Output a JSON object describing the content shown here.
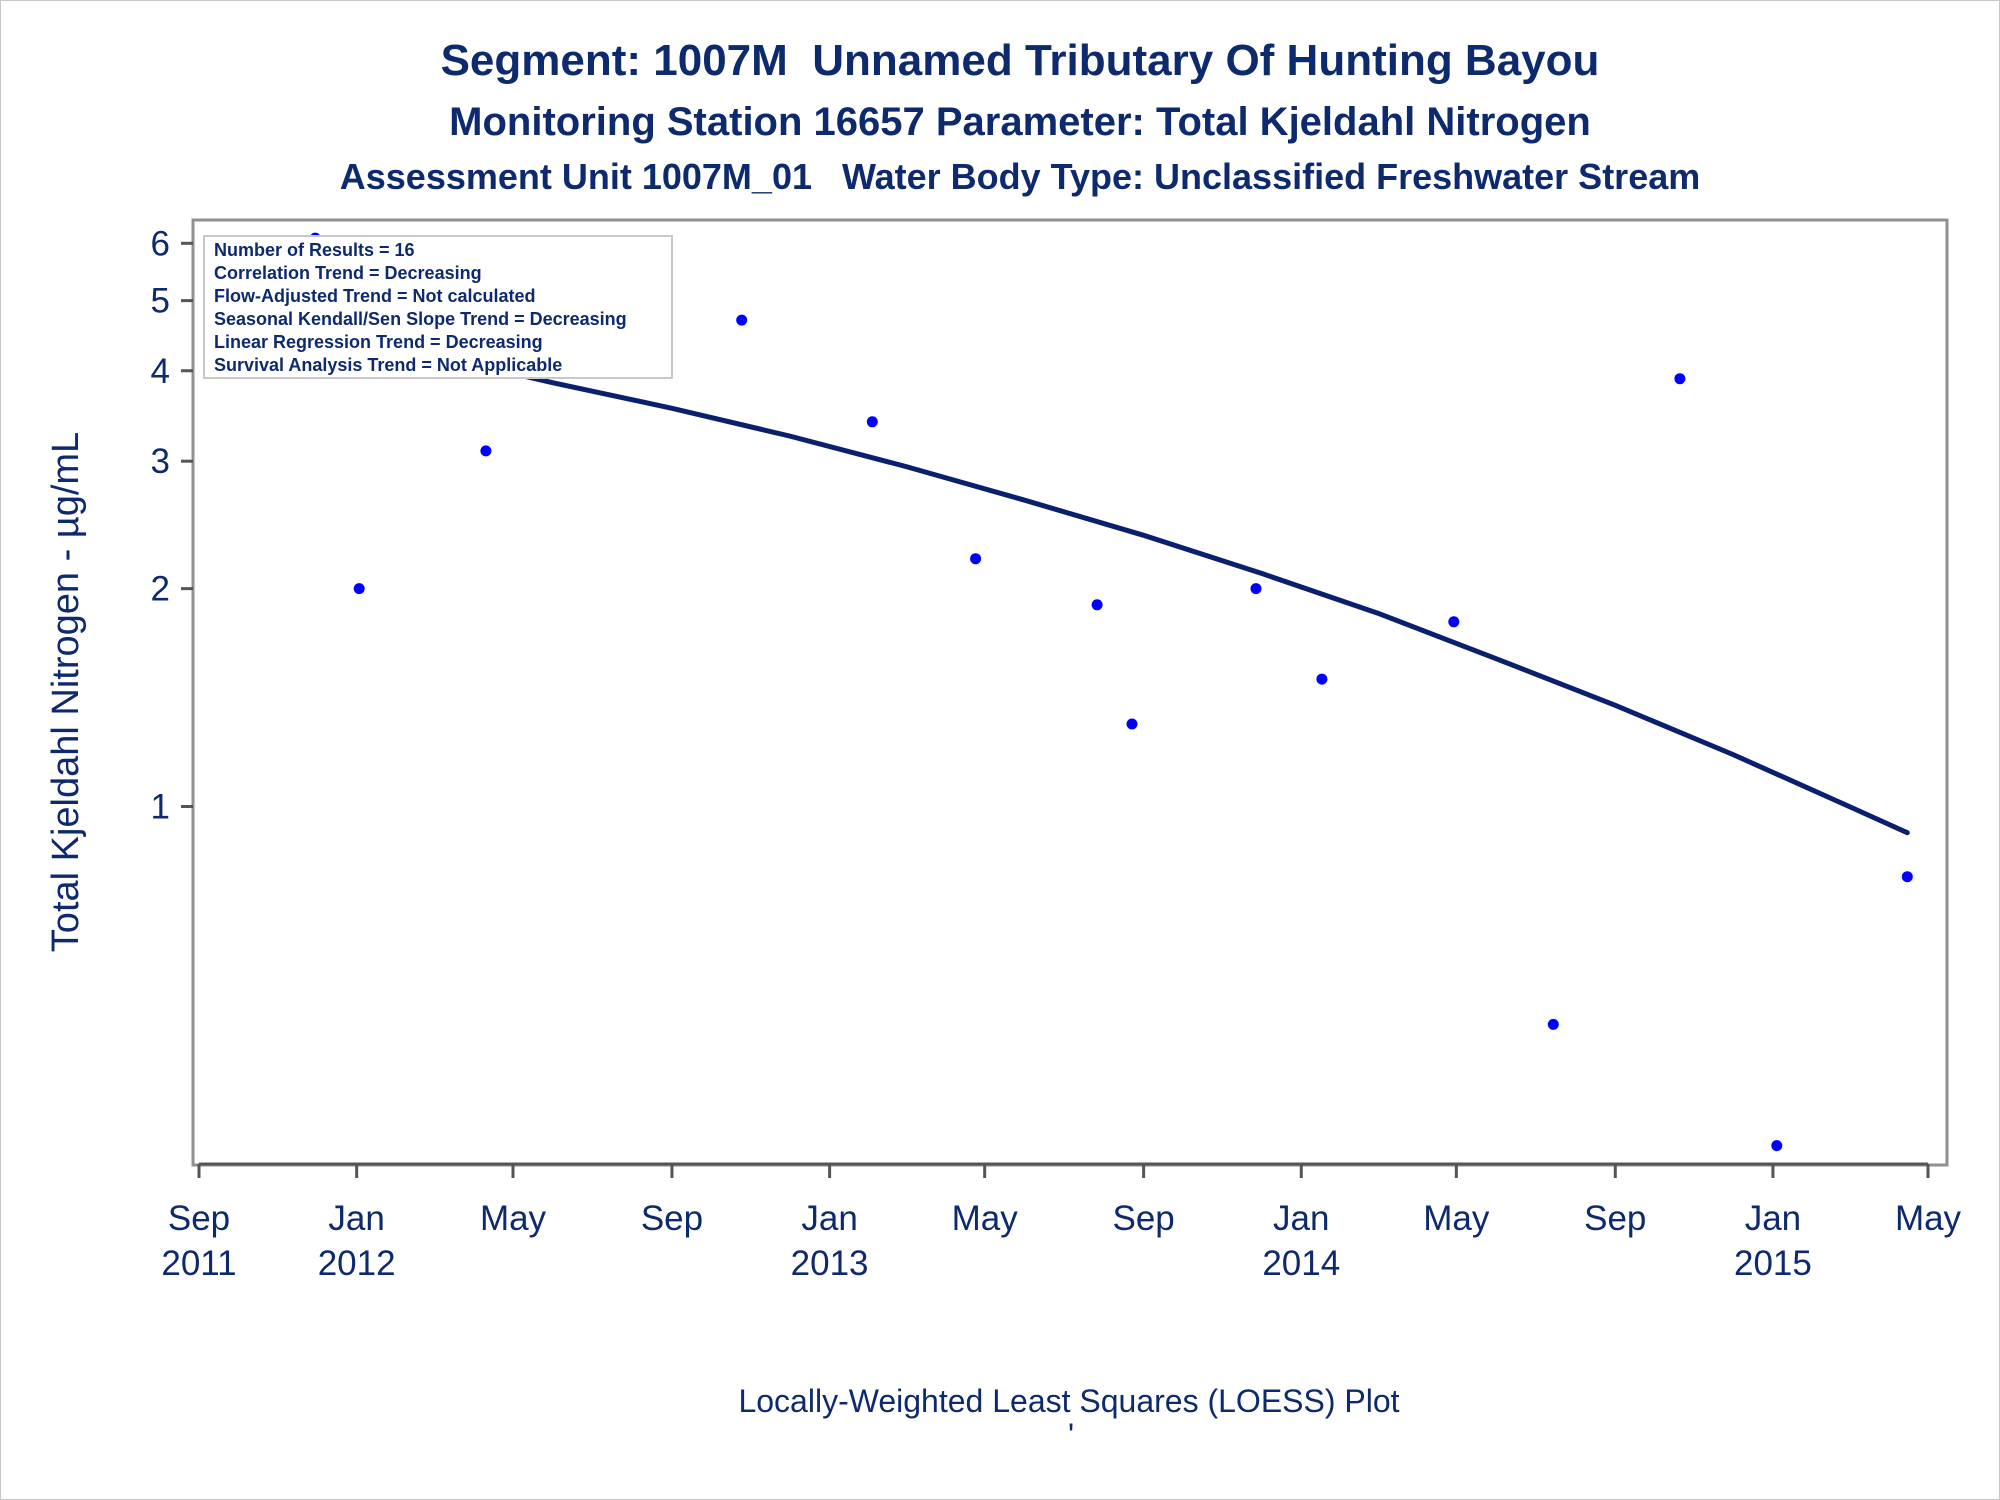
{
  "titles": {
    "line1": "Segment: 1007M  Unnamed Tributary Of Hunting Bayou",
    "line2": "Monitoring Station 16657 Parameter: Total Kjeldahl Nitrogen",
    "line3": "Assessment Unit 1007M_01   Water Body Type: Unclassified Freshwater Stream"
  },
  "stats_box": [
    "Number of Results = 16",
    "Correlation Trend = Decreasing",
    "Flow-Adjusted Trend = Not calculated",
    "Seasonal Kendall/Sen Slope Trend = Decreasing",
    "Linear Regression Trend = Decreasing",
    "Survival Analysis Trend = Not Applicable"
  ],
  "footnote": "Locally-Weighted Least Squares (LOESS) Plot",
  "footnote_mark": "'",
  "colors": {
    "text": "#0e2a6e",
    "points": "#0000ff",
    "curve": "#0a1f6e",
    "frame": "#909090"
  },
  "chart_data": {
    "type": "scatter",
    "ylabel": "Total Kjeldahl Nitrogen -  µg/mL",
    "yscale": "log",
    "ylim": [
      0.33,
      6.2
    ],
    "xlim": [
      "2011-09-01",
      "2015-05-01"
    ],
    "x_ticks": [
      {
        "date": "2011-09-01",
        "label": [
          "Sep",
          "2011"
        ]
      },
      {
        "date": "2012-01-01",
        "label": [
          "Jan",
          "2012"
        ]
      },
      {
        "date": "2012-05-01",
        "label": [
          "May",
          ""
        ]
      },
      {
        "date": "2012-09-01",
        "label": [
          "Sep",
          ""
        ]
      },
      {
        "date": "2013-01-01",
        "label": [
          "Jan",
          "2013"
        ]
      },
      {
        "date": "2013-05-01",
        "label": [
          "May",
          ""
        ]
      },
      {
        "date": "2013-09-01",
        "label": [
          "Sep",
          ""
        ]
      },
      {
        "date": "2014-01-01",
        "label": [
          "Jan",
          "2014"
        ]
      },
      {
        "date": "2014-05-01",
        "label": [
          "May",
          ""
        ]
      },
      {
        "date": "2014-09-01",
        "label": [
          "Sep",
          ""
        ]
      },
      {
        "date": "2015-01-01",
        "label": [
          "Jan",
          "2015"
        ]
      },
      {
        "date": "2015-05-01",
        "label": [
          "May",
          ""
        ]
      }
    ],
    "y_ticks": [
      1,
      2,
      3,
      4,
      5,
      6
    ],
    "series": [
      {
        "points": [
          {
            "x": "2011-11-30",
            "y": 6.1
          },
          {
            "x": "2012-01-03",
            "y": 2.0
          },
          {
            "x": "2012-04-10",
            "y": 3.1
          },
          {
            "x": "2012-07-24",
            "y": 5.7
          },
          {
            "x": "2012-10-25",
            "y": 4.7
          },
          {
            "x": "2013-02-03",
            "y": 3.4
          },
          {
            "x": "2013-04-24",
            "y": 2.2
          },
          {
            "x": "2013-07-27",
            "y": 1.9
          },
          {
            "x": "2013-08-23",
            "y": 1.3
          },
          {
            "x": "2013-11-27",
            "y": 2.0
          },
          {
            "x": "2014-01-17",
            "y": 1.5
          },
          {
            "x": "2014-04-29",
            "y": 1.8
          },
          {
            "x": "2014-07-15",
            "y": 0.5
          },
          {
            "x": "2014-10-21",
            "y": 3.9
          },
          {
            "x": "2015-01-04",
            "y": 0.34
          },
          {
            "x": "2015-04-15",
            "y": 0.8
          }
        ]
      },
      {
        "curve": [
          {
            "x": "2011-12-01",
            "y": 4.6
          },
          {
            "x": "2012-03-01",
            "y": 4.2
          },
          {
            "x": "2012-06-01",
            "y": 3.85
          },
          {
            "x": "2012-09-01",
            "y": 3.55
          },
          {
            "x": "2012-12-01",
            "y": 3.25
          },
          {
            "x": "2013-03-01",
            "y": 2.95
          },
          {
            "x": "2013-06-01",
            "y": 2.65
          },
          {
            "x": "2013-09-01",
            "y": 2.37
          },
          {
            "x": "2013-12-01",
            "y": 2.1
          },
          {
            "x": "2014-03-01",
            "y": 1.85
          },
          {
            "x": "2014-06-01",
            "y": 1.6
          },
          {
            "x": "2014-09-01",
            "y": 1.38
          },
          {
            "x": "2014-12-01",
            "y": 1.18
          },
          {
            "x": "2015-03-01",
            "y": 1.0
          },
          {
            "x": "2015-04-15",
            "y": 0.92
          }
        ]
      }
    ]
  }
}
